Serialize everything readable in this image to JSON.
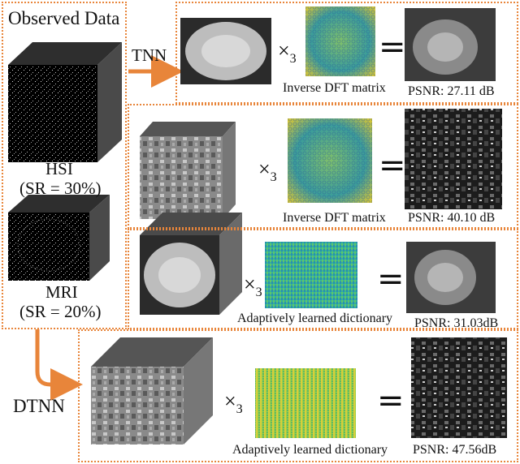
{
  "observed": {
    "title": "Observed Data",
    "hsi_label": "HSI",
    "hsi_sr": "(SR = 30%)",
    "mri_label": "MRI",
    "mri_sr": "(SR = 20%)"
  },
  "methods": {
    "tnn": "TNN",
    "dtnn": "DTNN"
  },
  "operator": {
    "mode_product": "×",
    "mode_index": "3",
    "equals": "="
  },
  "rows": [
    {
      "matrix_caption": "Inverse DFT matrix",
      "psnr": "PSNR: 27.11 dB"
    },
    {
      "matrix_caption": "Inverse DFT matrix",
      "psnr": "PSNR: 40.10 dB"
    },
    {
      "matrix_caption": "Adaptively learned dictionary",
      "psnr": "PSNR: 31.03dB"
    },
    {
      "matrix_caption": "Adaptively learned dictionary",
      "psnr": "PSNR: 47.56dB"
    }
  ],
  "colors": {
    "accent": "#e8853a",
    "arrow": "#e8853a"
  }
}
